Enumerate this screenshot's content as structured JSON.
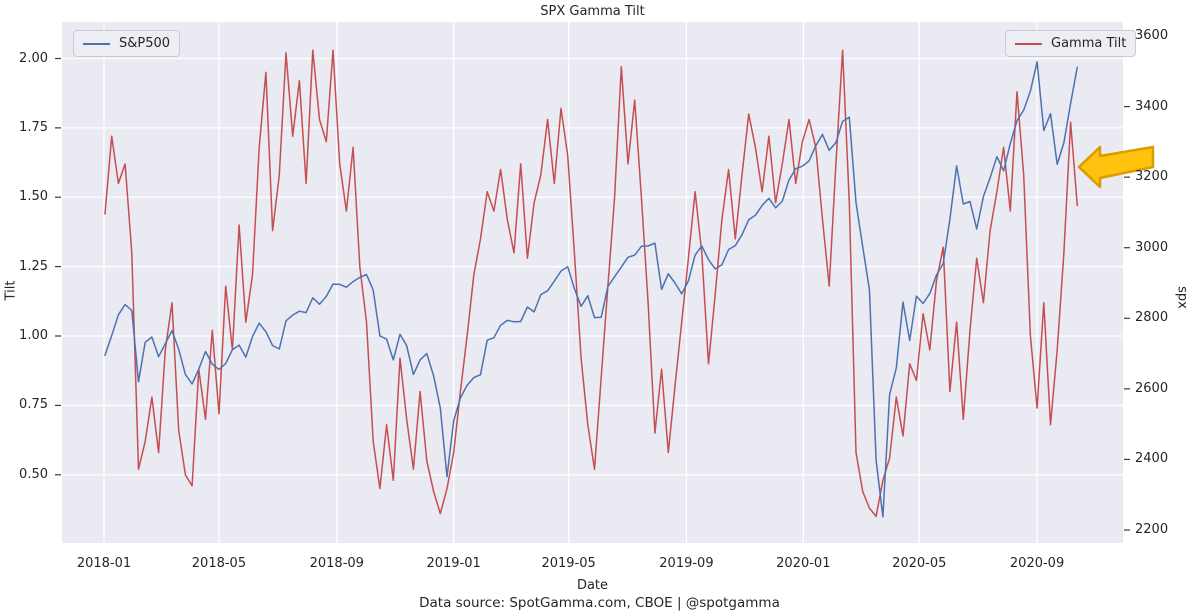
{
  "title": "SPX Gamma Tilt",
  "caption": "Data source: SpotGamma.com, CBOE | @spotgamma",
  "legends": {
    "sp500": "S&P500",
    "gamma_tilt": "Gamma Tilt"
  },
  "axes": {
    "x": {
      "label": "Date",
      "ticks": [
        "2018-01",
        "2018-05",
        "2018-09",
        "2019-01",
        "2019-05",
        "2019-09",
        "2020-01",
        "2020-05",
        "2020-09"
      ]
    },
    "left": {
      "label": "Tilt",
      "ticks": [
        "2.00",
        "1.75",
        "1.50",
        "1.25",
        "1.00",
        "0.75",
        "0.50"
      ]
    },
    "right": {
      "label": "spx",
      "ticks": [
        "3600",
        "3400",
        "3200",
        "3000",
        "2800",
        "2600",
        "2400",
        "2200"
      ]
    }
  },
  "colors": {
    "sp500": "#4C72B0",
    "gamma_tilt": "#C44E52",
    "plot_bg": "#EAEAF2",
    "grid": "#FFFFFF",
    "tick_mark": "#3a3a3a",
    "arrow_fill": "#FFC20E",
    "arrow_stroke": "#D99C00",
    "text": "#262626"
  },
  "annotation": {
    "type": "arrow-left",
    "target": "final Gamma Tilt spike near 1.6 in 2020-10"
  },
  "chart_data": {
    "type": "line",
    "title": "SPX Gamma Tilt",
    "xlabel": "Date",
    "x_tick_labels": [
      "2018-01",
      "2018-05",
      "2018-09",
      "2019-01",
      "2019-05",
      "2019-09",
      "2020-01",
      "2020-05",
      "2020-09"
    ],
    "left_axis": {
      "label": "Tilt",
      "ticks": [
        2.0,
        1.75,
        1.5,
        1.25,
        1.0,
        0.75,
        0.5
      ],
      "grid": true
    },
    "right_axis": {
      "label": "spx",
      "ticks": [
        3600,
        3400,
        3200,
        3000,
        2800,
        2600,
        2400,
        2200
      ],
      "grid": false
    },
    "legend_positions": {
      "sp500": "upper left",
      "gamma_tilt": "upper right"
    },
    "dates": [
      "2018-01-02",
      "2018-01-09",
      "2018-01-16",
      "2018-01-23",
      "2018-01-30",
      "2018-02-06",
      "2018-02-13",
      "2018-02-20",
      "2018-02-27",
      "2018-03-06",
      "2018-03-13",
      "2018-03-20",
      "2018-03-27",
      "2018-04-03",
      "2018-04-10",
      "2018-04-17",
      "2018-04-24",
      "2018-05-01",
      "2018-05-08",
      "2018-05-15",
      "2018-05-22",
      "2018-05-29",
      "2018-06-05",
      "2018-06-12",
      "2018-06-19",
      "2018-06-26",
      "2018-07-03",
      "2018-07-10",
      "2018-07-17",
      "2018-07-24",
      "2018-07-31",
      "2018-08-07",
      "2018-08-14",
      "2018-08-21",
      "2018-08-28",
      "2018-09-04",
      "2018-09-11",
      "2018-09-18",
      "2018-09-25",
      "2018-10-02",
      "2018-10-09",
      "2018-10-16",
      "2018-10-23",
      "2018-10-30",
      "2018-11-06",
      "2018-11-13",
      "2018-11-20",
      "2018-11-27",
      "2018-12-04",
      "2018-12-11",
      "2018-12-18",
      "2018-12-25",
      "2019-01-01",
      "2019-01-08",
      "2019-01-15",
      "2019-01-22",
      "2019-01-29",
      "2019-02-05",
      "2019-02-12",
      "2019-02-19",
      "2019-02-26",
      "2019-03-05",
      "2019-03-12",
      "2019-03-19",
      "2019-03-26",
      "2019-04-02",
      "2019-04-09",
      "2019-04-16",
      "2019-04-23",
      "2019-04-30",
      "2019-05-07",
      "2019-05-14",
      "2019-05-21",
      "2019-05-28",
      "2019-06-04",
      "2019-06-11",
      "2019-06-18",
      "2019-06-25",
      "2019-07-02",
      "2019-07-09",
      "2019-07-16",
      "2019-07-23",
      "2019-07-30",
      "2019-08-06",
      "2019-08-13",
      "2019-08-20",
      "2019-08-27",
      "2019-09-03",
      "2019-09-10",
      "2019-09-17",
      "2019-09-24",
      "2019-10-01",
      "2019-10-08",
      "2019-10-15",
      "2019-10-22",
      "2019-10-29",
      "2019-11-05",
      "2019-11-12",
      "2019-11-19",
      "2019-11-26",
      "2019-12-03",
      "2019-12-10",
      "2019-12-17",
      "2019-12-24",
      "2019-12-31",
      "2020-01-07",
      "2020-01-14",
      "2020-01-21",
      "2020-01-28",
      "2020-02-04",
      "2020-02-11",
      "2020-02-18",
      "2020-02-25",
      "2020-03-03",
      "2020-03-10",
      "2020-03-17",
      "2020-03-24",
      "2020-03-31",
      "2020-04-07",
      "2020-04-14",
      "2020-04-21",
      "2020-04-28",
      "2020-05-05",
      "2020-05-12",
      "2020-05-19",
      "2020-05-26",
      "2020-06-02",
      "2020-06-09",
      "2020-06-16",
      "2020-06-23",
      "2020-06-30",
      "2020-07-07",
      "2020-07-14",
      "2020-07-21",
      "2020-07-28",
      "2020-08-04",
      "2020-08-11",
      "2020-08-18",
      "2020-08-25",
      "2020-09-01",
      "2020-09-08",
      "2020-09-15",
      "2020-09-22",
      "2020-09-29",
      "2020-10-06",
      "2020-10-13"
    ],
    "series": [
      {
        "name": "Gamma Tilt",
        "axis": "left",
        "color": "#C44E52",
        "values": [
          1.44,
          1.72,
          1.55,
          1.62,
          1.3,
          0.52,
          0.62,
          0.78,
          0.58,
          0.95,
          1.12,
          0.66,
          0.5,
          0.46,
          0.88,
          0.7,
          1.02,
          0.72,
          1.18,
          0.95,
          1.4,
          1.05,
          1.22,
          1.68,
          1.95,
          1.38,
          1.58,
          2.02,
          1.72,
          1.92,
          1.55,
          2.03,
          1.78,
          1.7,
          2.03,
          1.62,
          1.45,
          1.68,
          1.25,
          1.05,
          0.62,
          0.45,
          0.68,
          0.48,
          0.92,
          0.7,
          0.52,
          0.8,
          0.55,
          0.44,
          0.36,
          0.45,
          0.58,
          0.8,
          1.0,
          1.22,
          1.35,
          1.52,
          1.45,
          1.6,
          1.42,
          1.3,
          1.62,
          1.28,
          1.48,
          1.58,
          1.78,
          1.55,
          1.82,
          1.65,
          1.3,
          0.92,
          0.68,
          0.52,
          0.85,
          1.18,
          1.5,
          1.97,
          1.62,
          1.85,
          1.5,
          1.12,
          0.65,
          0.88,
          0.58,
          0.82,
          1.05,
          1.28,
          1.52,
          1.3,
          0.9,
          1.15,
          1.42,
          1.6,
          1.35,
          1.58,
          1.8,
          1.68,
          1.52,
          1.72,
          1.48,
          1.62,
          1.78,
          1.55,
          1.7,
          1.78,
          1.68,
          1.42,
          1.18,
          1.62,
          2.03,
          1.48,
          0.58,
          0.44,
          0.38,
          0.35,
          0.48,
          0.56,
          0.78,
          0.64,
          0.9,
          0.84,
          1.08,
          0.95,
          1.2,
          1.32,
          0.8,
          1.05,
          0.7,
          1.02,
          1.28,
          1.12,
          1.38,
          1.52,
          1.68,
          1.45,
          1.88,
          1.58,
          1.0,
          0.74,
          1.12,
          0.68,
          0.95,
          1.3,
          1.77,
          1.47
        ]
      },
      {
        "name": "S&P500",
        "axis": "right",
        "color": "#4C72B0",
        "values": [
          2695,
          2751,
          2810,
          2839,
          2822,
          2620,
          2732,
          2747,
          2691,
          2728,
          2765,
          2712,
          2641,
          2614,
          2656,
          2706,
          2670,
          2655,
          2672,
          2711,
          2724,
          2690,
          2748,
          2786,
          2762,
          2723,
          2713,
          2793,
          2809,
          2820,
          2816,
          2858,
          2840,
          2862,
          2897,
          2896,
          2888,
          2904,
          2916,
          2924,
          2880,
          2750,
          2741,
          2682,
          2755,
          2722,
          2641,
          2682,
          2700,
          2637,
          2546,
          2351,
          2510,
          2574,
          2610,
          2632,
          2640,
          2738,
          2745,
          2780,
          2794,
          2790,
          2791,
          2832,
          2818,
          2867,
          2878,
          2905,
          2934,
          2946,
          2884,
          2834,
          2864,
          2802,
          2803,
          2890,
          2918,
          2945,
          2973,
          2979,
          3004,
          3005,
          3013,
          2882,
          2926,
          2900,
          2869,
          2906,
          2979,
          3005,
          2966,
          2940,
          2952,
          2995,
          3006,
          3037,
          3079,
          3092,
          3120,
          3140,
          3113,
          3132,
          3192,
          3224,
          3231,
          3246,
          3289,
          3321,
          3276,
          3298,
          3358,
          3370,
          3128,
          3003,
          2882,
          2398,
          2237,
          2584,
          2659,
          2846,
          2737,
          2863,
          2842,
          2870,
          2923,
          2955,
          3081,
          3232,
          3124,
          3131,
          3053,
          3145,
          3198,
          3258,
          3218,
          3295,
          3360,
          3390,
          3444,
          3527,
          3332,
          3380,
          3236,
          3298,
          3409,
          3512
        ]
      }
    ]
  }
}
